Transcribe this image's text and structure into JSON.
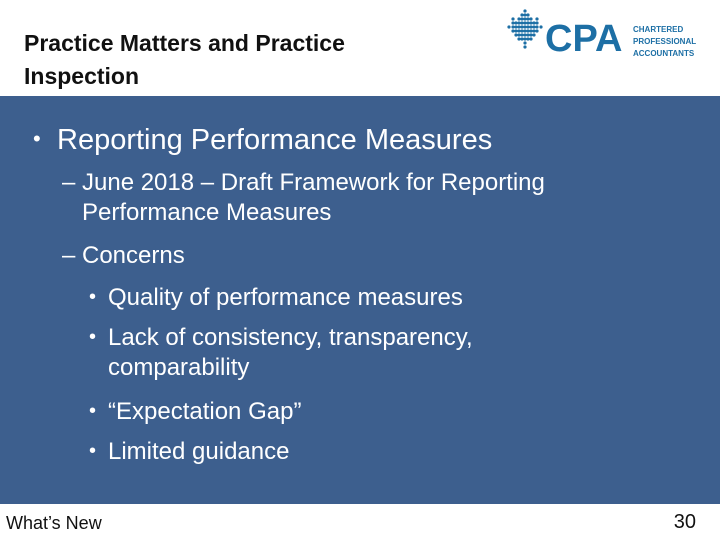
{
  "slide": {
    "title_line1": "Practice Matters and Practice",
    "title_line2": "Inspection",
    "logo": {
      "icon": "maple-leaf-dots-icon",
      "wordmark": "CPA",
      "line1": "CHARTERED",
      "line2": "PROFESSIONAL",
      "line3": "ACCOUNTANTS",
      "color": "#1d6fa5"
    },
    "bullet_main": "Reporting Performance Measures",
    "sub1_line1": "June 2018 – Draft Framework for Reporting",
    "sub1_line2": "Performance Measures",
    "sub2": "Concerns",
    "sub2_items": [
      "Quality of performance measures",
      "Lack of consistency, transparency,",
      "comparability",
      "“Expectation Gap”",
      "Limited guidance"
    ],
    "footer_left": "What’s New",
    "page_number": "30",
    "colors": {
      "content_bg": "#3d5f8e",
      "text": "#ffffff"
    }
  }
}
